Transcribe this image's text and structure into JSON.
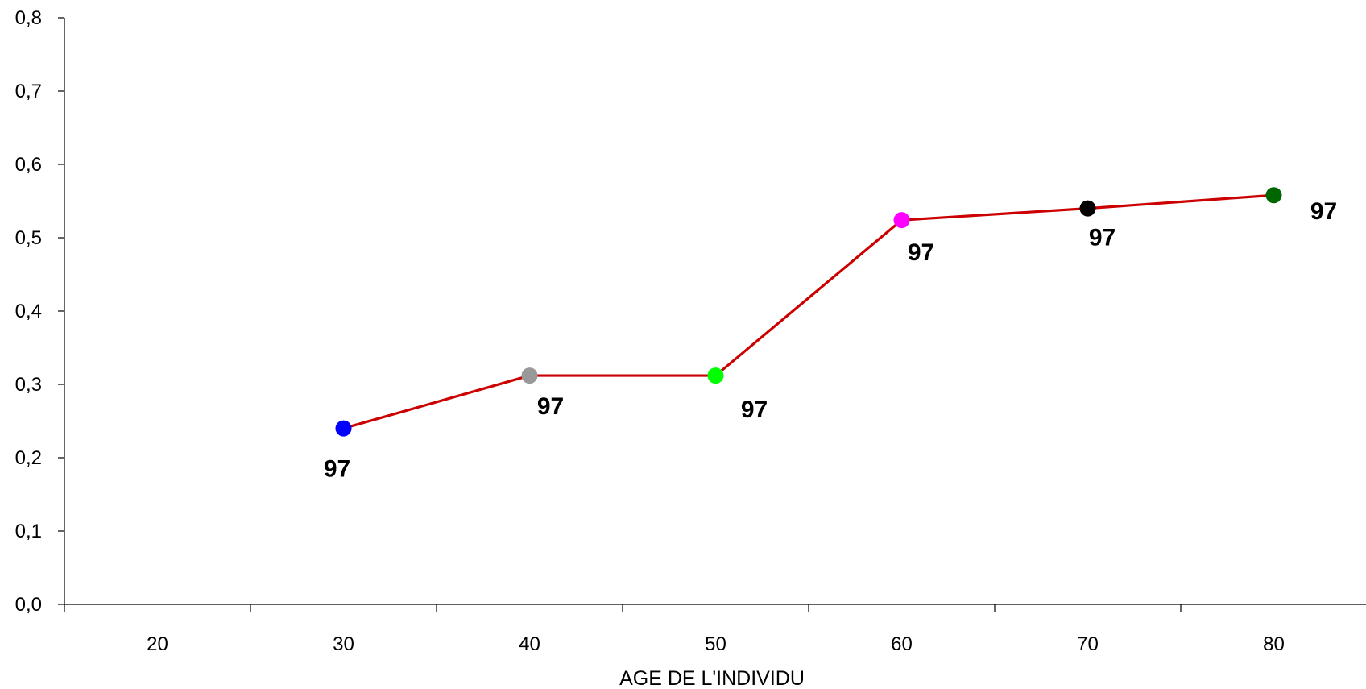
{
  "chart_data": {
    "type": "line",
    "title": "",
    "xlabel": "AGE DE L'INDIVIDU",
    "ylabel": "",
    "x_ticks": [
      "20",
      "30",
      "40",
      "50",
      "60",
      "70",
      "80"
    ],
    "y_ticks": [
      "0,0",
      "0,1",
      "0,2",
      "0,3",
      "0,4",
      "0,5",
      "0,6",
      "0,7",
      "0,8"
    ],
    "ylim": [
      0,
      0.8
    ],
    "grid": false,
    "line_color": "#cc0000",
    "series": [
      {
        "points": [
          {
            "x": 30,
            "y": 0.24,
            "label": "97",
            "color": "#0000ff"
          },
          {
            "x": 40,
            "y": 0.312,
            "label": "97",
            "color": "#999999"
          },
          {
            "x": 50,
            "y": 0.312,
            "label": "97",
            "color": "#00ff00"
          },
          {
            "x": 60,
            "y": 0.524,
            "label": "97",
            "color": "#ff00ff"
          },
          {
            "x": 70,
            "y": 0.54,
            "label": "97",
            "color": "#000000"
          },
          {
            "x": 80,
            "y": 0.558,
            "label": "97",
            "color": "#006600"
          }
        ]
      }
    ]
  }
}
